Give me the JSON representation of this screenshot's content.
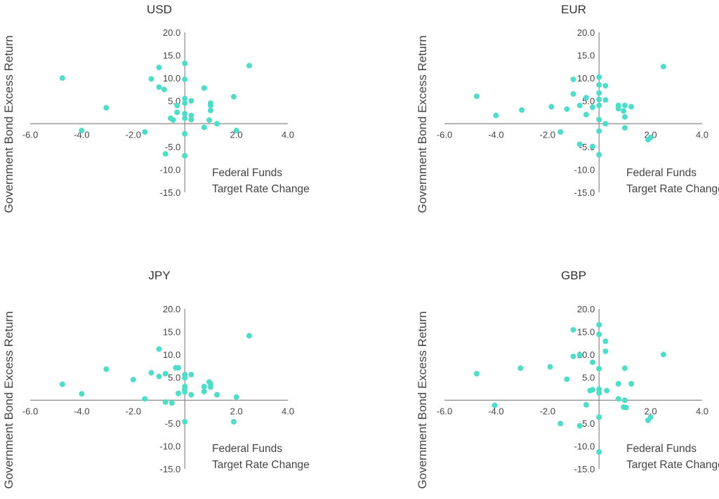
{
  "colors": {
    "point": "#4FDCC8",
    "axis": "#8a8a8a",
    "text": "#444444"
  },
  "chart_data": [
    {
      "type": "scatter",
      "title": "USD",
      "xlabel": "Federal Funds Target Rate Change",
      "annotation_lines": [
        "Federal Funds",
        "Target Rate Change"
      ],
      "ylabel": "Government Bond Excess Return",
      "xlim": [
        -6.0,
        4.0
      ],
      "ylim": [
        -15.0,
        20.0
      ],
      "x_ticks": [
        "-6.0",
        "-4.0",
        "-2.0",
        "2.0",
        "4.0"
      ],
      "y_ticks": [
        "20.0",
        "15.0",
        "10.0",
        "5.0",
        "-5.0",
        "-10.0",
        "-15.0"
      ],
      "points": [
        [
          -4.75,
          10.0
        ],
        [
          -4.0,
          -1.5
        ],
        [
          -3.05,
          3.5
        ],
        [
          -1.55,
          -1.8
        ],
        [
          -1.3,
          9.8
        ],
        [
          -1.0,
          12.3
        ],
        [
          -1.0,
          8.0
        ],
        [
          -0.8,
          7.5
        ],
        [
          -0.75,
          -6.6
        ],
        [
          -0.55,
          1.2
        ],
        [
          -0.45,
          0.8
        ],
        [
          -0.3,
          2.5
        ],
        [
          -0.3,
          4.0
        ],
        [
          0.0,
          13.2
        ],
        [
          0.0,
          9.7
        ],
        [
          0.0,
          5.5
        ],
        [
          0.0,
          4.5
        ],
        [
          0.0,
          2.2
        ],
        [
          0.0,
          1.2
        ],
        [
          0.0,
          -2.2
        ],
        [
          0.0,
          -7.0
        ],
        [
          0.25,
          5.0
        ],
        [
          0.25,
          1.8
        ],
        [
          0.25,
          0.9
        ],
        [
          0.75,
          7.8
        ],
        [
          0.75,
          -0.8
        ],
        [
          0.95,
          0.8
        ],
        [
          1.0,
          4.5
        ],
        [
          1.0,
          4.0
        ],
        [
          1.0,
          2.9
        ],
        [
          1.25,
          0.0
        ],
        [
          1.9,
          5.9
        ],
        [
          2.0,
          -1.5
        ],
        [
          2.5,
          12.7
        ]
      ]
    },
    {
      "type": "scatter",
      "title": "EUR",
      "xlabel": "Federal Funds Target Rate Change",
      "annotation_lines": [
        "Federal Funds",
        "Target Rate Change"
      ],
      "ylabel": "Government Bond Excess Return",
      "xlim": [
        -6.0,
        4.0
      ],
      "ylim": [
        -15.0,
        20.0
      ],
      "x_ticks": [
        "-6.0",
        "-4.0",
        "-2.0",
        "2.0",
        "4.0"
      ],
      "y_ticks": [
        "20.0",
        "15.0",
        "10.0",
        "5.0",
        "-5.0",
        "-10.0",
        "-15.0"
      ],
      "points": [
        [
          -4.75,
          6.0
        ],
        [
          -4.0,
          1.8
        ],
        [
          -3.0,
          3.0
        ],
        [
          -1.85,
          3.7
        ],
        [
          -1.5,
          -1.8
        ],
        [
          -1.25,
          3.2
        ],
        [
          -1.0,
          9.7
        ],
        [
          -1.0,
          6.5
        ],
        [
          -0.75,
          4.0
        ],
        [
          -0.75,
          -4.5
        ],
        [
          -0.5,
          5.7
        ],
        [
          -0.5,
          2.0
        ],
        [
          -0.25,
          3.6
        ],
        [
          -0.25,
          -5.0
        ],
        [
          0.0,
          10.2
        ],
        [
          0.0,
          8.5
        ],
        [
          0.0,
          6.7
        ],
        [
          0.0,
          5.3
        ],
        [
          0.0,
          4.0
        ],
        [
          0.0,
          0.9
        ],
        [
          0.0,
          -1.6
        ],
        [
          0.0,
          -6.8
        ],
        [
          0.25,
          8.3
        ],
        [
          0.25,
          5.2
        ],
        [
          0.25,
          0.0
        ],
        [
          0.75,
          4.0
        ],
        [
          0.75,
          3.3
        ],
        [
          0.95,
          2.8
        ],
        [
          1.0,
          4.0
        ],
        [
          1.0,
          1.5
        ],
        [
          1.0,
          -0.9
        ],
        [
          1.25,
          3.7
        ],
        [
          1.9,
          -3.5
        ],
        [
          2.0,
          -3.0
        ],
        [
          2.5,
          12.5
        ]
      ]
    },
    {
      "type": "scatter",
      "title": "JPY",
      "xlabel": "Federal Funds Target Rate Change",
      "annotation_lines": [
        "Federal Funds",
        "Target Rate Change"
      ],
      "ylabel": "Government Bond Excess Return",
      "xlim": [
        -6.0,
        4.0
      ],
      "ylim": [
        -15.0,
        20.0
      ],
      "x_ticks": [
        "-6.0",
        "-4.0",
        "-2.0",
        "2.0",
        "4.0"
      ],
      "y_ticks": [
        "20.0",
        "15.0",
        "10.0",
        "5.0",
        "-5.0",
        "-10.0",
        "-15.0"
      ],
      "points": [
        [
          -4.75,
          3.5
        ],
        [
          -4.0,
          1.4
        ],
        [
          -3.05,
          6.8
        ],
        [
          -2.0,
          4.5
        ],
        [
          -1.55,
          0.3
        ],
        [
          -1.3,
          6.0
        ],
        [
          -1.0,
          11.2
        ],
        [
          -1.0,
          5.2
        ],
        [
          -0.75,
          5.8
        ],
        [
          -0.75,
          -0.4
        ],
        [
          -0.5,
          -0.6
        ],
        [
          -0.35,
          7.1
        ],
        [
          -0.25,
          7.1
        ],
        [
          -0.25,
          1.5
        ],
        [
          0.0,
          5.6
        ],
        [
          0.0,
          4.9
        ],
        [
          0.0,
          3.0
        ],
        [
          0.0,
          2.4
        ],
        [
          0.0,
          1.8
        ],
        [
          0.0,
          -4.7
        ],
        [
          0.25,
          5.6
        ],
        [
          0.25,
          1.2
        ],
        [
          0.75,
          3.0
        ],
        [
          0.75,
          1.9
        ],
        [
          0.95,
          4.0
        ],
        [
          1.0,
          3.6
        ],
        [
          1.0,
          2.9
        ],
        [
          1.25,
          1.2
        ],
        [
          1.9,
          -4.7
        ],
        [
          2.0,
          0.7
        ],
        [
          2.5,
          14.1
        ]
      ]
    },
    {
      "type": "scatter",
      "title": "GBP",
      "xlabel": "Federal Funds Target Rate Change",
      "annotation_lines": [
        "Federal Funds",
        "Target Rate Change"
      ],
      "ylabel": "Government Bond Excess Return",
      "xlim": [
        -6.0,
        4.0
      ],
      "ylim": [
        -15.0,
        20.0
      ],
      "x_ticks": [
        "-6.0",
        "-4.0",
        "-2.0",
        "2.0",
        "4.0"
      ],
      "y_ticks": [
        "20.0",
        "15.0",
        "10.0",
        "5.0",
        "-5.0",
        "-10.0",
        "-15.0"
      ],
      "points": [
        [
          -4.75,
          5.8
        ],
        [
          -4.05,
          -1.1
        ],
        [
          -3.05,
          7.0
        ],
        [
          -1.9,
          7.3
        ],
        [
          -1.5,
          -5.1
        ],
        [
          -1.25,
          4.6
        ],
        [
          -1.0,
          15.4
        ],
        [
          -1.0,
          9.6
        ],
        [
          -0.75,
          9.9
        ],
        [
          -0.75,
          -5.6
        ],
        [
          -0.5,
          -1.0
        ],
        [
          -0.25,
          8.3
        ],
        [
          -0.25,
          2.3
        ],
        [
          -0.35,
          2.1
        ],
        [
          0.0,
          16.5
        ],
        [
          0.0,
          14.4
        ],
        [
          0.0,
          6.9
        ],
        [
          0.0,
          2.4
        ],
        [
          0.0,
          1.6
        ],
        [
          0.0,
          -3.7
        ],
        [
          0.0,
          -11.3
        ],
        [
          0.25,
          12.9
        ],
        [
          0.25,
          10.7
        ],
        [
          0.3,
          2.1
        ],
        [
          0.75,
          3.6
        ],
        [
          0.75,
          0.3
        ],
        [
          0.95,
          -1.5
        ],
        [
          1.0,
          7.0
        ],
        [
          1.0,
          0.0
        ],
        [
          1.05,
          -1.6
        ],
        [
          1.25,
          3.6
        ],
        [
          1.9,
          -4.4
        ],
        [
          2.0,
          -3.7
        ],
        [
          2.5,
          10.0
        ]
      ]
    }
  ]
}
